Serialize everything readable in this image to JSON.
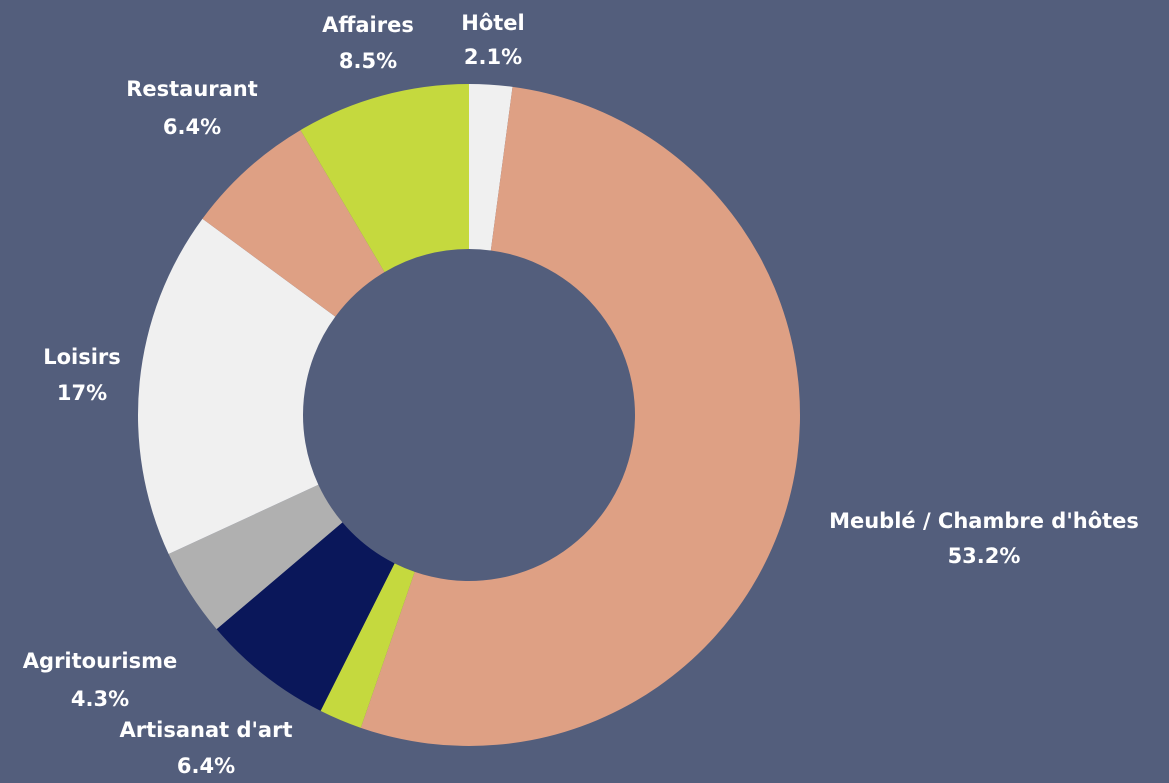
{
  "chart_data": {
    "type": "donut",
    "categories": [
      "Hôtel",
      "Meublé / Chambre d'hôtes",
      null,
      "Artisanat d'art",
      "Agritourisme",
      "Loisirs",
      "Restaurant",
      "Affaires"
    ],
    "values": [
      2.1,
      53.2,
      2.1,
      6.4,
      4.3,
      17,
      6.4,
      8.5
    ],
    "value_labels": [
      "2.1%",
      "53.2%",
      null,
      "6.4%",
      "4.3%",
      "17%",
      "6.4%",
      "8.5%"
    ],
    "colors": [
      "#f0f0f0",
      "#dea084",
      "#c5d93e",
      "#0a175a",
      "#b0b0b0",
      "#f0f0f0",
      "#dea084",
      "#c5d93e"
    ]
  }
}
